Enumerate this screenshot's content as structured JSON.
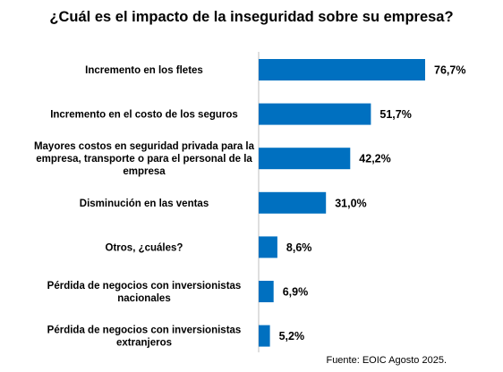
{
  "chart_data": {
    "type": "bar",
    "orientation": "horizontal",
    "title": "¿Cuál es el impacto de la inseguridad sobre su empresa?",
    "categories": [
      "Incremento en los fletes",
      "Incremento en el costo de los seguros",
      "Mayores costos en seguridad privada para la empresa, transporte o para el personal de la empresa",
      "Disminución en las ventas",
      "Otros, ¿cuáles?",
      "Pérdida de negocios con inversionistas nacionales",
      "Pérdida de negocios con inversionistas extranjeros"
    ],
    "category_lines": [
      [
        "Incremento en los fletes"
      ],
      [
        "Incremento en el costo de los seguros"
      ],
      [
        "Mayores costos en seguridad privada para la",
        "empresa, transporte o para el personal de la",
        "empresa"
      ],
      [
        "Disminución en las ventas"
      ],
      [
        "Otros, ¿cuáles?"
      ],
      [
        "Pérdida de negocios con inversionistas",
        "nacionales"
      ],
      [
        "Pérdida de negocios con inversionistas",
        "extranjeros"
      ]
    ],
    "values": [
      76.7,
      51.7,
      42.2,
      31.0,
      8.6,
      6.9,
      5.2
    ],
    "value_labels": [
      "76,7%",
      "51,7%",
      "42,2%",
      "31,0%",
      "8,6%",
      "6,9%",
      "5,2%"
    ],
    "unit": "%",
    "xlim": [
      0,
      100
    ],
    "grid": false,
    "legend": "none",
    "bar_color": "#0070C0",
    "axis_color": "#BFBFBF"
  },
  "source": "Fuente: EOIC Agosto 2025."
}
